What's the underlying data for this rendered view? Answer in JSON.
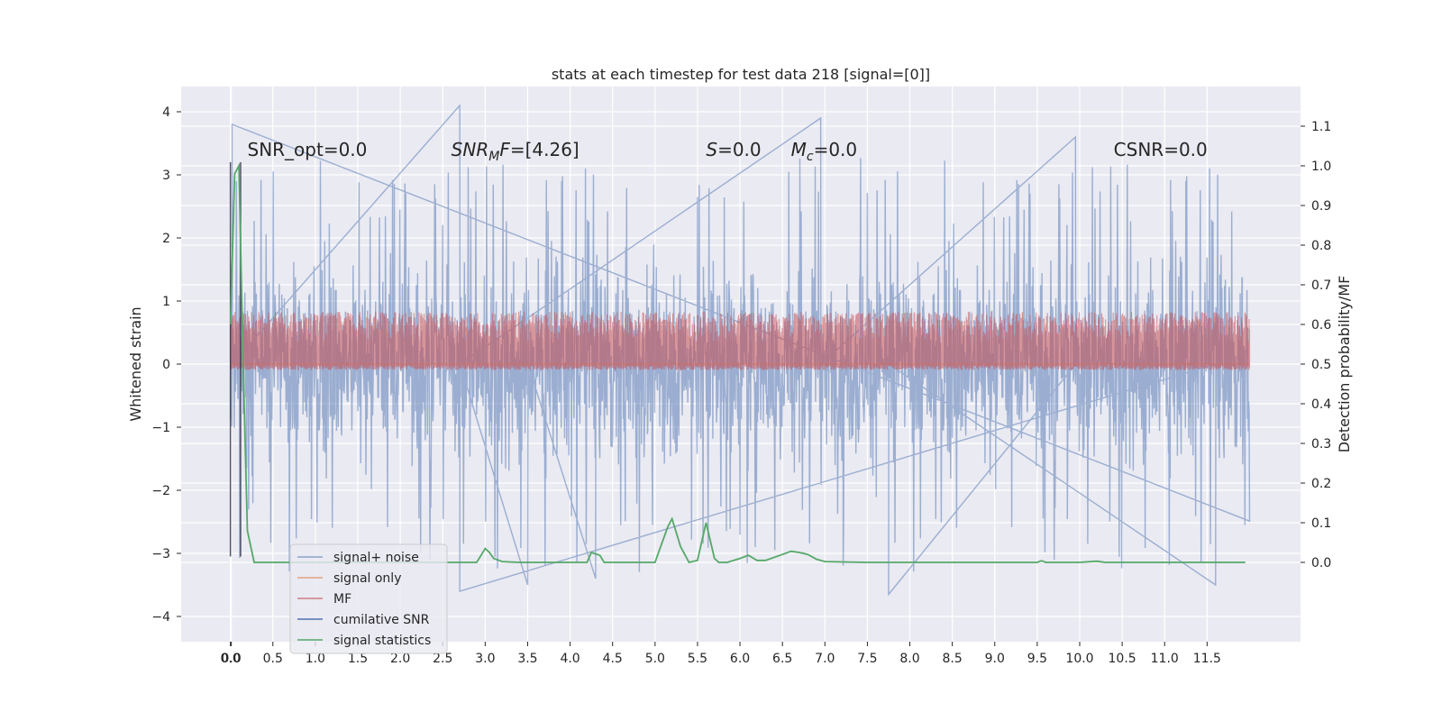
{
  "chart_data": {
    "type": "line",
    "title": "stats at each timestep for test data 218 [signal=[0]]",
    "xlabel": "",
    "ylabel": "Whitened strain",
    "y2label": "Detection probability/MF",
    "xlim": [
      -0.58,
      12.6
    ],
    "ylim": [
      -4.4,
      4.4
    ],
    "y2lim": [
      -0.2,
      1.2
    ],
    "x_ticks": [
      "0.0",
      "0.0",
      "0.5",
      "1.0",
      "1.5",
      "2.0",
      "2.5",
      "3.0",
      "3.5",
      "4.0",
      "4.5",
      "5.0",
      "5.5",
      "6.0",
      "6.5",
      "7.0",
      "7.5",
      "8.0",
      "8.5",
      "9.0",
      "9.5",
      "10.0",
      "10.5",
      "11.0",
      "11.5"
    ],
    "x_tick_values": [
      0.0,
      0.0,
      0.5,
      1.0,
      1.5,
      2.0,
      2.5,
      3.0,
      3.5,
      4.0,
      4.5,
      5.0,
      5.5,
      6.0,
      6.5,
      7.0,
      7.5,
      8.0,
      8.5,
      9.0,
      9.5,
      10.0,
      10.5,
      11.0,
      11.5
    ],
    "y_ticks": [
      4,
      3,
      2,
      1,
      0,
      -1,
      -2,
      -3,
      -4
    ],
    "y_tick_labels": [
      "4",
      "3",
      "2",
      "1",
      "0",
      "−1",
      "−2",
      "−3",
      "−4"
    ],
    "y2_ticks": [
      1.1,
      1.0,
      0.9,
      0.8,
      0.7,
      0.6,
      0.5,
      0.4,
      0.3,
      0.2,
      0.1,
      0.0
    ],
    "y2_tick_labels": [
      "1.1",
      "1.0",
      "0.9",
      "0.8",
      "0.7",
      "0.6",
      "0.5",
      "0.4",
      "0.3",
      "0.2",
      "0.1",
      "0.0"
    ],
    "grid": true,
    "legend_position": "bottom-left",
    "annotations": [
      {
        "text": "SNR_opt=0.0",
        "x": 0.2,
        "y": 3.3
      },
      {
        "text": "SNR_MF=[4.26]",
        "x": 2.6,
        "y": 3.3
      },
      {
        "text": "S=0.0",
        "x": 5.6,
        "y": 3.3
      },
      {
        "text": "M_c=0.0",
        "x": 6.6,
        "y": 3.3
      },
      {
        "text": "CSNR=0.0",
        "x": 10.4,
        "y": 3.3
      }
    ],
    "series": [
      {
        "name": "signal+ noise",
        "color": "#4c72b0",
        "axis": "left",
        "style": "noise",
        "x_range": [
          0.0,
          12.0
        ],
        "envelope": [
          -2.2,
          2.2
        ],
        "peaks": [
          [
            0.02,
            3.8
          ],
          [
            2.7,
            4.1
          ],
          [
            6.95,
            3.9
          ],
          [
            9.95,
            3.6
          ],
          [
            7.75,
            -3.65
          ],
          [
            11.6,
            -3.5
          ],
          [
            2.7,
            -3.6
          ],
          [
            3.5,
            -3.5
          ],
          [
            4.3,
            -3.4
          ]
        ]
      },
      {
        "name": "signal only",
        "color": "#dd8452",
        "axis": "left",
        "style": "flat",
        "values": [
          0.0
        ]
      },
      {
        "name": "MF",
        "color": "#c44e52",
        "axis": "right",
        "style": "band",
        "x_range": [
          0.0,
          12.0
        ],
        "band": [
          0.5,
          0.62
        ]
      },
      {
        "name": "cumilative SNR",
        "color": "#4c72b0",
        "axis": "left",
        "style": "spikes",
        "points": [
          [
            0.0,
            -3.05
          ],
          [
            0.0,
            3.2
          ],
          [
            0.12,
            -3.05
          ],
          [
            0.12,
            3.2
          ]
        ]
      },
      {
        "name": "signal statistics",
        "color": "#55a868",
        "axis": "right",
        "style": "line",
        "x": [
          0.0,
          0.05,
          0.1,
          0.15,
          0.2,
          0.28,
          0.35,
          0.5,
          1.0,
          2.0,
          2.9,
          3.0,
          3.05,
          3.1,
          3.2,
          3.4,
          4.0,
          4.2,
          4.25,
          4.35,
          4.4,
          4.6,
          5.0,
          5.05,
          5.15,
          5.2,
          5.3,
          5.4,
          5.5,
          5.6,
          5.7,
          5.75,
          5.85,
          6.0,
          6.1,
          6.2,
          6.3,
          6.5,
          6.6,
          6.7,
          6.8,
          6.9,
          7.0,
          7.5,
          8.0,
          9.0,
          9.5,
          9.55,
          9.6,
          10.0,
          10.2,
          10.3,
          11.0,
          11.95
        ],
        "values": [
          0.6,
          0.98,
          1.0,
          0.5,
          0.08,
          0.0,
          0.0,
          0.0,
          0.0,
          0.0,
          0.0,
          0.035,
          0.025,
          0.01,
          0.002,
          0.0,
          0.0,
          0.0,
          0.025,
          0.018,
          0.0,
          0.0,
          0.0,
          0.03,
          0.09,
          0.11,
          0.04,
          0.0,
          0.005,
          0.1,
          0.01,
          0.0,
          0.0,
          0.01,
          0.018,
          0.005,
          0.005,
          0.02,
          0.028,
          0.025,
          0.02,
          0.008,
          0.002,
          0.0,
          0.0,
          0.0,
          0.0,
          0.004,
          0.0,
          0.0,
          0.003,
          0.0,
          0.0,
          0.0
        ]
      }
    ]
  }
}
